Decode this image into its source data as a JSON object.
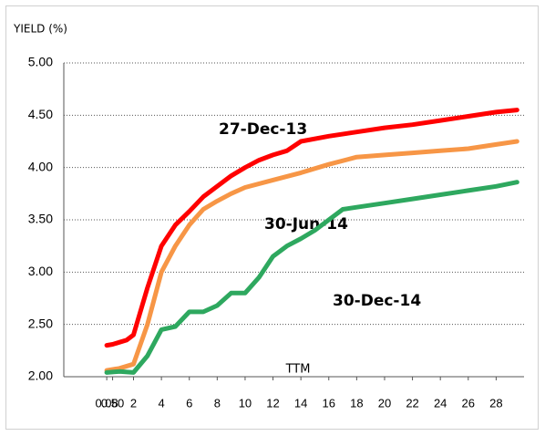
{
  "chart_data": {
    "type": "line",
    "ylabel": "YIELD (%)",
    "xlabel": "TTM",
    "xlim": [
      -3,
      30
    ],
    "xticks": [
      0.08,
      {
        "value": 0.5,
        "label": "0.50"
      },
      2,
      4,
      6,
      8,
      10,
      12,
      14,
      16,
      18,
      20,
      22,
      24,
      26,
      28
    ],
    "ylim": [
      2,
      5
    ],
    "yticks": [
      {
        "value": 2,
        "label": "2.00"
      },
      {
        "value": 2.5,
        "label": "2.50"
      },
      {
        "value": 3,
        "label": "3.00"
      },
      {
        "value": 3.5,
        "label": "3.50"
      },
      {
        "value": 4,
        "label": "4.00"
      },
      {
        "value": 4.5,
        "label": "4.50"
      },
      {
        "value": 5,
        "label": "5.00"
      }
    ],
    "grid": true,
    "series": [
      {
        "name": "27-Dec-13",
        "color": "#ff0000",
        "label_color": "#ff0000",
        "x": [
          0.08,
          0.5,
          1,
          1.5,
          2,
          3,
          4,
          5,
          6,
          7,
          8,
          9,
          10,
          11,
          12,
          13,
          14,
          16,
          18,
          20,
          22,
          24,
          26,
          28,
          29.5
        ],
        "values": [
          2.3,
          2.31,
          2.33,
          2.35,
          2.4,
          2.85,
          3.25,
          3.45,
          3.58,
          3.72,
          3.82,
          3.92,
          4.0,
          4.07,
          4.12,
          4.16,
          4.25,
          4.3,
          4.34,
          4.38,
          4.41,
          4.45,
          4.49,
          4.53,
          4.55
        ]
      },
      {
        "name": "30-Jun-14",
        "color": "#f79646",
        "label_color": "#a0522d",
        "x": [
          0.08,
          1,
          2,
          3,
          4,
          5,
          6,
          7,
          8,
          9,
          10,
          12,
          14,
          16,
          18,
          20,
          22,
          24,
          26,
          28,
          29.5
        ],
        "values": [
          2.06,
          2.08,
          2.12,
          2.5,
          3.0,
          3.25,
          3.45,
          3.6,
          3.68,
          3.75,
          3.81,
          3.88,
          3.95,
          4.03,
          4.1,
          4.12,
          4.14,
          4.16,
          4.18,
          4.22,
          4.25
        ]
      },
      {
        "name": "30-Dec-14",
        "color": "#2ea85f",
        "label_color": "#2ea85f",
        "x": [
          0.08,
          1,
          2,
          3,
          4,
          5,
          6,
          7,
          8,
          9,
          10,
          11,
          12,
          13,
          14,
          15,
          16,
          17,
          18,
          20,
          22,
          24,
          26,
          28,
          29.5
        ],
        "values": [
          2.04,
          2.05,
          2.04,
          2.2,
          2.45,
          2.48,
          2.62,
          2.62,
          2.68,
          2.8,
          2.8,
          2.95,
          3.15,
          3.25,
          3.32,
          3.4,
          3.5,
          3.6,
          3.62,
          3.66,
          3.7,
          3.74,
          3.78,
          3.82,
          3.86
        ]
      }
    ]
  }
}
